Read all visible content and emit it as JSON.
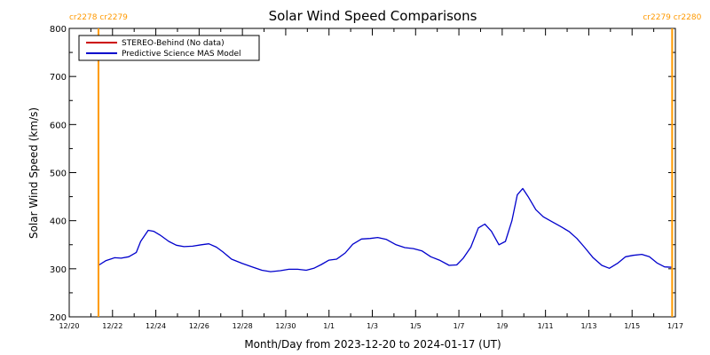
{
  "chart_data": {
    "type": "line",
    "title": "Solar Wind Speed Comparisons",
    "xlabel": "Month/Day from 2023-12-20 to 2024-01-17 (UT)",
    "ylabel": "Solar Wind Speed (km/s)",
    "xlim": [
      0,
      28
    ],
    "ylim": [
      200,
      800
    ],
    "y_ticks": [
      200,
      300,
      400,
      500,
      600,
      700,
      800
    ],
    "x_ticks": [
      {
        "day": 0,
        "label": "12/20"
      },
      {
        "day": 2,
        "label": "12/22"
      },
      {
        "day": 4,
        "label": "12/24"
      },
      {
        "day": 6,
        "label": "12/26"
      },
      {
        "day": 8,
        "label": "12/28"
      },
      {
        "day": 10,
        "label": "12/30"
      },
      {
        "day": 12,
        "label": "1/1"
      },
      {
        "day": 14,
        "label": "1/3"
      },
      {
        "day": 16,
        "label": "1/5"
      },
      {
        "day": 18,
        "label": "1/7"
      },
      {
        "day": 20,
        "label": "1/9"
      },
      {
        "day": 22,
        "label": "1/11"
      },
      {
        "day": 24,
        "label": "1/13"
      },
      {
        "day": 26,
        "label": "1/15"
      },
      {
        "day": 28,
        "label": "1/17"
      }
    ],
    "grid": false,
    "legend_position": "top-left",
    "series": [
      {
        "name": "STEREO-Behind (No data)",
        "color": "#cc0000",
        "x": [],
        "y": []
      },
      {
        "name": "Predictive Science MAS Model",
        "color": "#0000cc",
        "x": [
          1.35,
          1.7,
          2.1,
          2.4,
          2.75,
          3.1,
          3.3,
          3.65,
          3.9,
          4.2,
          4.6,
          4.95,
          5.3,
          5.7,
          6.1,
          6.45,
          6.8,
          7.1,
          7.5,
          8.0,
          8.45,
          8.9,
          9.3,
          9.75,
          10.15,
          10.55,
          10.95,
          11.3,
          11.65,
          12.0,
          12.35,
          12.75,
          13.1,
          13.5,
          13.9,
          14.25,
          14.65,
          15.1,
          15.5,
          15.9,
          16.3,
          16.7,
          17.1,
          17.55,
          17.9,
          18.2,
          18.55,
          18.9,
          19.2,
          19.5,
          19.85,
          20.15,
          20.45,
          20.7,
          20.95,
          21.2,
          21.55,
          21.9,
          22.3,
          22.7,
          23.1,
          23.45,
          23.8,
          24.2,
          24.6,
          24.95,
          25.35,
          25.7,
          26.05,
          26.45,
          26.8,
          27.15,
          27.5,
          27.85
        ],
        "y": [
          307,
          317,
          323,
          322,
          325,
          334,
          357,
          380,
          378,
          370,
          357,
          349,
          346,
          347,
          350,
          352,
          345,
          335,
          320,
          311,
          304,
          297,
          294,
          296,
          299,
          299,
          297,
          301,
          309,
          318,
          320,
          333,
          351,
          362,
          363,
          365,
          361,
          350,
          344,
          342,
          337,
          325,
          318,
          307,
          308,
          322,
          345,
          385,
          393,
          378,
          350,
          357,
          400,
          454,
          467,
          450,
          423,
          408,
          398,
          388,
          377,
          363,
          345,
          323,
          307,
          301,
          312,
          325,
          328,
          330,
          325,
          312,
          304,
          303
        ]
      }
    ],
    "vertical_markers": [
      {
        "day": 1.35,
        "label": "cr2278 cr2279",
        "color": "#ff9900"
      },
      {
        "day": 27.85,
        "label": "cr2279 cr2280",
        "color": "#ff9900"
      }
    ]
  }
}
